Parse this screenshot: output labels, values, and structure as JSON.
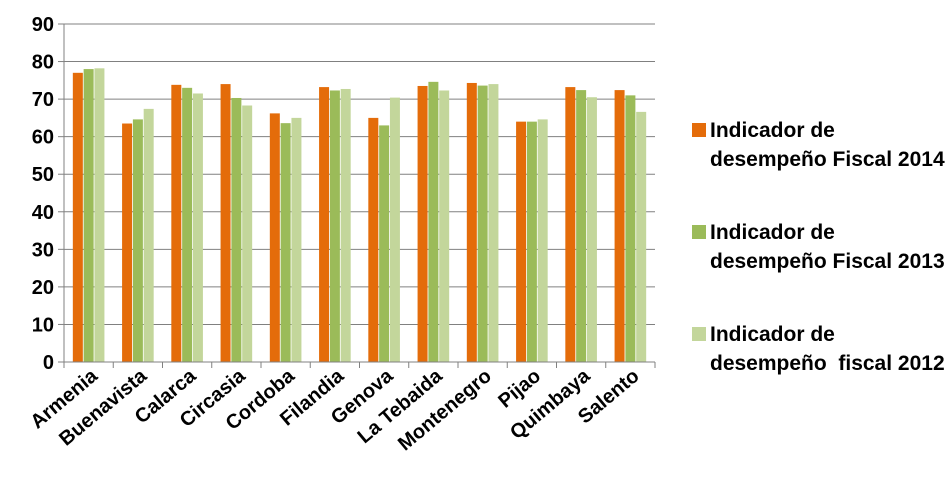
{
  "chart_data": {
    "type": "bar",
    "categories": [
      "Armenia",
      "Buenavista",
      "Calarca",
      "Circasia",
      "Cordoba",
      "Filandia",
      "Genova",
      "La Tebaida",
      "Montenegro",
      "Pijao",
      "Quimbaya",
      "Salento"
    ],
    "series": [
      {
        "name": "Indicador de desempeño Fiscal 2014",
        "color": "#E46C0A",
        "values": [
          77,
          63.5,
          73.8,
          74,
          66.2,
          73.2,
          65,
          73.5,
          74.3,
          64,
          73.2,
          72.4
        ]
      },
      {
        "name": "Indicador de desempeño Fiscal 2013",
        "color": "#9BBB59",
        "values": [
          78,
          64.6,
          73,
          70.3,
          63.6,
          72.3,
          63,
          74.6,
          73.6,
          64,
          72.4,
          71
        ]
      },
      {
        "name": "Indicador de desempeño  fiscal 2012",
        "color": "#C3D69B",
        "values": [
          78.2,
          67.4,
          71.5,
          68.3,
          65,
          72.7,
          70.4,
          72.3,
          74,
          64.6,
          70.5,
          66.6
        ]
      }
    ],
    "title": "",
    "xlabel": "",
    "ylabel": "",
    "ylim": [
      0,
      90
    ],
    "yticks": [
      "0",
      "10",
      "20",
      "30",
      "40",
      "50",
      "60",
      "70",
      "80",
      "90"
    ],
    "grid": true,
    "legend_position": "right"
  }
}
